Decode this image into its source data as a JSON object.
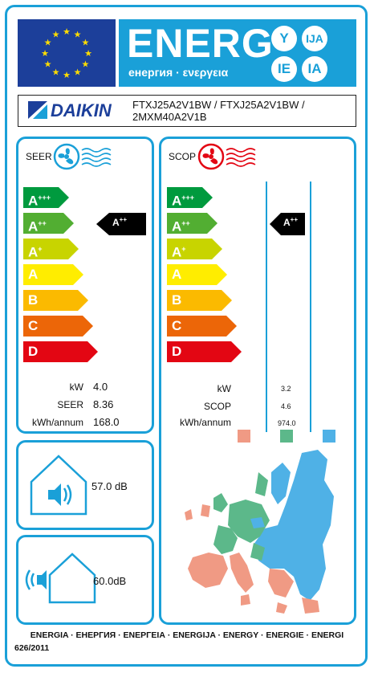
{
  "header": {
    "energy_word": "ENERG",
    "energy_sub": "енергия · ενεργεια",
    "bubbles": [
      "Y",
      "IJA",
      "IE",
      "IA"
    ],
    "colors": {
      "eu_blue": "#1c3f9a",
      "label_blue": "#1aa0d8",
      "star": "#ffdd00"
    }
  },
  "supplier": {
    "brand": "DAIKIN",
    "models_line1": "FTXJ25A2V1BW / FTXJ25A2V1BW /",
    "models_line2": "2MXM40A2V1B"
  },
  "scale": [
    {
      "label": "A",
      "sup": "+++",
      "color": "#009a3e"
    },
    {
      "label": "A",
      "sup": "++",
      "color": "#52ae32"
    },
    {
      "label": "A",
      "sup": "+",
      "color": "#c8d400"
    },
    {
      "label": "A",
      "sup": "",
      "color": "#ffed00"
    },
    {
      "label": "B",
      "sup": "",
      "color": "#fbba00"
    },
    {
      "label": "C",
      "sup": "",
      "color": "#ec6608"
    },
    {
      "label": "D",
      "sup": "",
      "color": "#e30613"
    }
  ],
  "cooling": {
    "title": "SEER",
    "icon": "fan-cold-icon",
    "class": "A",
    "class_sup": "++",
    "class_index": 1,
    "rows": [
      {
        "label": "kW",
        "value": "4.0"
      },
      {
        "label": "SEER",
        "value": "8.36"
      },
      {
        "label": "kWh/annum",
        "value": "168.0"
      }
    ]
  },
  "heating": {
    "title": "SCOP",
    "icon": "fan-hot-icon",
    "class": "A",
    "class_sup": "++",
    "class_index": 1,
    "rows": [
      {
        "label": "kW",
        "value": "3.2"
      },
      {
        "label": "SCOP",
        "value": "4.6"
      },
      {
        "label": "kWh/annum",
        "value": "974.0"
      }
    ],
    "zone_colors": [
      "#f09a84",
      "#5cb88a",
      "#4fb1e6"
    ]
  },
  "noise": {
    "indoor_value": "57.0",
    "outdoor_value": "60.0",
    "unit": "dB",
    "icons": [
      "indoor-sound-icon",
      "outdoor-sound-icon"
    ]
  },
  "footer": {
    "languages": "ENERGIA · ЕНЕРГИЯ · ΕΝΕΡΓΕΙΑ · ENERGIJA · ENERGY · ENERGIE · ENERGI",
    "regulation": "626/2011"
  }
}
